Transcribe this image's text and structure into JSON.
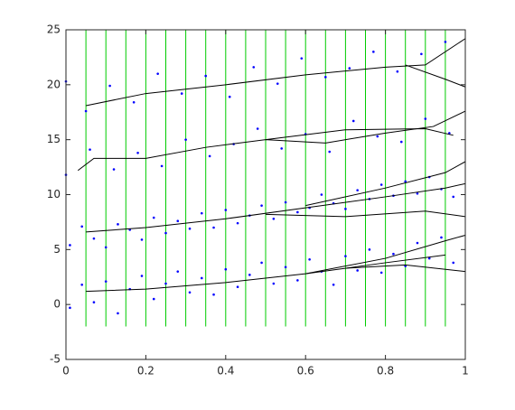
{
  "chart_data": {
    "type": "scatter",
    "xlim": [
      0,
      1
    ],
    "ylim": [
      -5,
      25
    ],
    "xticks": [
      0,
      0.2,
      0.4,
      0.6,
      0.8,
      1
    ],
    "yticks": [
      -5,
      0,
      5,
      10,
      15,
      20,
      25
    ],
    "point_color": "#0000ff",
    "line_color": "#000000",
    "vline_color": "#00cc00",
    "vlines": {
      "x": [
        0.05,
        0.1,
        0.15,
        0.2,
        0.25,
        0.3,
        0.35,
        0.4,
        0.45,
        0.5,
        0.55,
        0.6,
        0.65,
        0.7,
        0.75,
        0.8,
        0.85,
        0.9,
        0.95
      ],
      "y_range": [
        -2,
        25
      ]
    },
    "scatter": [
      {
        "x": [
          0.01,
          0.04,
          0.07,
          0.1,
          0.13,
          0.16,
          0.19,
          0.22,
          0.25,
          0.28,
          0.31,
          0.34,
          0.37,
          0.4,
          0.43,
          0.46,
          0.49,
          0.52,
          0.55,
          0.58,
          0.61,
          0.64,
          0.67,
          0.7,
          0.73,
          0.76,
          0.79,
          0.82,
          0.85,
          0.88,
          0.91,
          0.94,
          0.97
        ],
        "y": [
          -0.3,
          1.8,
          0.2,
          2.1,
          -0.8,
          1.4,
          2.6,
          0.5,
          1.9,
          3.0,
          1.1,
          2.4,
          0.9,
          3.2,
          1.6,
          2.7,
          3.8,
          1.9,
          3.4,
          2.2,
          4.1,
          3.0,
          1.8,
          4.4,
          3.1,
          5.0,
          2.9,
          4.6,
          3.5,
          5.6,
          4.2,
          6.1,
          3.8
        ]
      },
      {
        "x": [
          0.01,
          0.04,
          0.07,
          0.1,
          0.13,
          0.16,
          0.19,
          0.22,
          0.25,
          0.28,
          0.31,
          0.34,
          0.37,
          0.4,
          0.43,
          0.46,
          0.49,
          0.52,
          0.55,
          0.58,
          0.61,
          0.64,
          0.67,
          0.7,
          0.73,
          0.76,
          0.79,
          0.82,
          0.85,
          0.88,
          0.91,
          0.94,
          0.97
        ],
        "y": [
          5.4,
          7.1,
          6.0,
          5.2,
          7.3,
          6.8,
          5.9,
          7.9,
          6.5,
          7.6,
          6.9,
          8.3,
          7.0,
          8.6,
          7.4,
          8.1,
          9.0,
          7.8,
          9.3,
          8.4,
          8.8,
          10.0,
          9.2,
          8.7,
          10.4,
          9.6,
          10.9,
          9.9,
          11.2,
          10.1,
          11.6,
          10.5,
          9.8
        ]
      },
      {
        "x": [
          0.0,
          0.06,
          0.12,
          0.18,
          0.24,
          0.3,
          0.36,
          0.42,
          0.48,
          0.54,
          0.6,
          0.66,
          0.72,
          0.78,
          0.84,
          0.9,
          0.96
        ],
        "y": [
          11.8,
          14.1,
          12.3,
          13.8,
          12.6,
          15.0,
          13.5,
          14.6,
          16.0,
          14.2,
          15.5,
          13.9,
          16.7,
          15.3,
          14.8,
          16.9,
          15.6
        ]
      },
      {
        "x": [
          0.0,
          0.05,
          0.11,
          0.17,
          0.23,
          0.29,
          0.35,
          0.41,
          0.47,
          0.53,
          0.59,
          0.65,
          0.71,
          0.77,
          0.83,
          0.89,
          0.95
        ],
        "y": [
          20.3,
          17.6,
          19.9,
          18.4,
          21.0,
          19.2,
          20.8,
          18.9,
          21.6,
          20.1,
          22.4,
          20.7,
          21.5,
          23.0,
          21.2,
          22.8,
          23.9
        ]
      }
    ],
    "lines": [
      {
        "x": [
          0.05,
          0.2,
          0.4,
          0.6,
          0.8,
          0.95
        ],
        "y": [
          1.2,
          1.4,
          2.0,
          2.8,
          3.8,
          4.5
        ]
      },
      {
        "x": [
          0.6,
          0.8,
          0.95,
          1.0
        ],
        "y": [
          2.8,
          4.2,
          5.8,
          6.3
        ]
      },
      {
        "x": [
          0.7,
          0.85,
          1.0
        ],
        "y": [
          3.3,
          3.6,
          3.0
        ]
      },
      {
        "x": [
          0.05,
          0.2,
          0.4,
          0.6,
          0.8,
          0.95,
          1.0
        ],
        "y": [
          6.6,
          7.0,
          7.8,
          8.8,
          9.8,
          10.6,
          11.0
        ]
      },
      {
        "x": [
          0.5,
          0.7,
          0.9,
          1.0
        ],
        "y": [
          8.2,
          8.0,
          8.5,
          8.0
        ]
      },
      {
        "x": [
          0.6,
          0.8,
          0.95,
          1.0
        ],
        "y": [
          9.0,
          10.6,
          12.0,
          13.0
        ]
      },
      {
        "x": [
          0.03,
          0.07,
          0.2,
          0.35,
          0.5,
          0.65,
          0.8,
          0.92,
          1.0
        ],
        "y": [
          12.2,
          13.3,
          13.3,
          14.3,
          15.0,
          14.7,
          15.6,
          16.2,
          17.6
        ]
      },
      {
        "x": [
          0.5,
          0.7,
          0.9,
          0.97
        ],
        "y": [
          15.0,
          15.9,
          16.0,
          15.4
        ]
      },
      {
        "x": [
          0.05,
          0.2,
          0.4,
          0.6,
          0.8,
          0.9,
          1.0
        ],
        "y": [
          18.1,
          19.2,
          20.0,
          20.9,
          21.6,
          21.8,
          24.2
        ]
      },
      {
        "x": [
          0.85,
          0.95,
          1.0
        ],
        "y": [
          21.8,
          20.5,
          19.8
        ]
      }
    ]
  }
}
